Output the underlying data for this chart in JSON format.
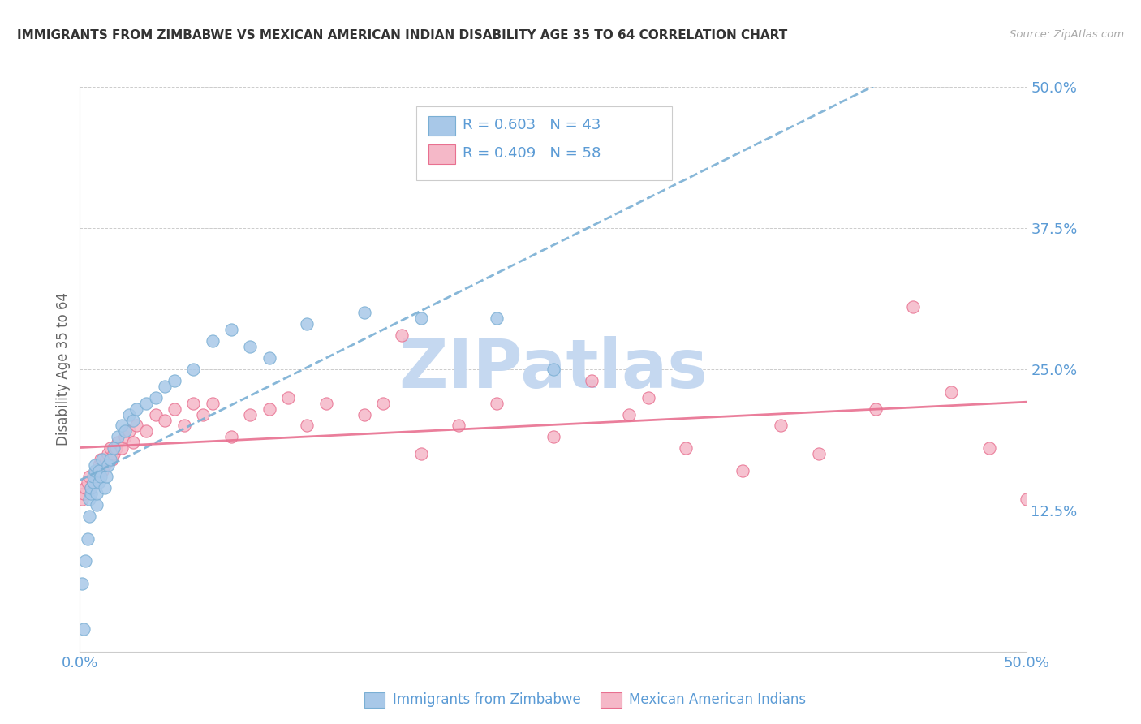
{
  "title": "IMMIGRANTS FROM ZIMBABWE VS MEXICAN AMERICAN INDIAN DISABILITY AGE 35 TO 64 CORRELATION CHART",
  "source": "Source: ZipAtlas.com",
  "ylabel": "Disability Age 35 to 64",
  "xmin": 0.0,
  "xmax": 0.5,
  "ymin": 0.0,
  "ymax": 0.5,
  "yticks": [
    0.0,
    0.125,
    0.25,
    0.375,
    0.5
  ],
  "ytick_labels": [
    "",
    "12.5%",
    "25.0%",
    "37.5%",
    "50.0%"
  ],
  "xticks": [
    0.0,
    0.125,
    0.25,
    0.375,
    0.5
  ],
  "xtick_labels": [
    "0.0%",
    "",
    "",
    "",
    "50.0%"
  ],
  "series1_label": "Immigrants from Zimbabwe",
  "series1_R": "0.603",
  "series1_N": "43",
  "series1_color": "#a8c8e8",
  "series1_edge_color": "#7aafd4",
  "series1_trend_color": "#7aafd4",
  "series2_label": "Mexican American Indians",
  "series2_R": "0.409",
  "series2_N": "58",
  "series2_color": "#f5b8c8",
  "series2_edge_color": "#e87090",
  "series2_trend_color": "#e87090",
  "watermark": "ZIPatlas",
  "watermark_color": "#c5d8f0",
  "background_color": "#ffffff",
  "grid_color": "#cccccc",
  "title_color": "#333333",
  "axis_label_color": "#5b9bd5",
  "series1_x": [
    0.001,
    0.002,
    0.003,
    0.004,
    0.005,
    0.005,
    0.006,
    0.006,
    0.007,
    0.007,
    0.008,
    0.008,
    0.009,
    0.009,
    0.01,
    0.01,
    0.011,
    0.012,
    0.013,
    0.014,
    0.015,
    0.016,
    0.018,
    0.02,
    0.022,
    0.024,
    0.026,
    0.028,
    0.03,
    0.035,
    0.04,
    0.045,
    0.05,
    0.06,
    0.07,
    0.08,
    0.09,
    0.1,
    0.12,
    0.15,
    0.18,
    0.22,
    0.25
  ],
  "series1_y": [
    0.06,
    0.02,
    0.08,
    0.1,
    0.12,
    0.135,
    0.14,
    0.145,
    0.15,
    0.155,
    0.16,
    0.165,
    0.13,
    0.14,
    0.15,
    0.16,
    0.155,
    0.17,
    0.145,
    0.155,
    0.165,
    0.17,
    0.18,
    0.19,
    0.2,
    0.195,
    0.21,
    0.205,
    0.215,
    0.22,
    0.225,
    0.235,
    0.24,
    0.25,
    0.275,
    0.285,
    0.27,
    0.26,
    0.29,
    0.3,
    0.295,
    0.295,
    0.25
  ],
  "series2_x": [
    0.001,
    0.002,
    0.003,
    0.004,
    0.005,
    0.006,
    0.007,
    0.008,
    0.009,
    0.01,
    0.011,
    0.012,
    0.013,
    0.014,
    0.015,
    0.016,
    0.017,
    0.018,
    0.019,
    0.02,
    0.022,
    0.024,
    0.026,
    0.028,
    0.03,
    0.035,
    0.04,
    0.045,
    0.05,
    0.055,
    0.06,
    0.065,
    0.07,
    0.08,
    0.09,
    0.1,
    0.11,
    0.12,
    0.13,
    0.15,
    0.16,
    0.17,
    0.18,
    0.2,
    0.22,
    0.25,
    0.27,
    0.29,
    0.3,
    0.32,
    0.35,
    0.37,
    0.39,
    0.42,
    0.44,
    0.46,
    0.48,
    0.5
  ],
  "series2_y": [
    0.135,
    0.14,
    0.145,
    0.15,
    0.155,
    0.145,
    0.15,
    0.155,
    0.16,
    0.165,
    0.17,
    0.16,
    0.165,
    0.17,
    0.175,
    0.18,
    0.17,
    0.175,
    0.18,
    0.185,
    0.18,
    0.19,
    0.195,
    0.185,
    0.2,
    0.195,
    0.21,
    0.205,
    0.215,
    0.2,
    0.22,
    0.21,
    0.22,
    0.19,
    0.21,
    0.215,
    0.225,
    0.2,
    0.22,
    0.21,
    0.22,
    0.28,
    0.175,
    0.2,
    0.22,
    0.19,
    0.24,
    0.21,
    0.225,
    0.18,
    0.16,
    0.2,
    0.175,
    0.215,
    0.305,
    0.23,
    0.18,
    0.135
  ]
}
